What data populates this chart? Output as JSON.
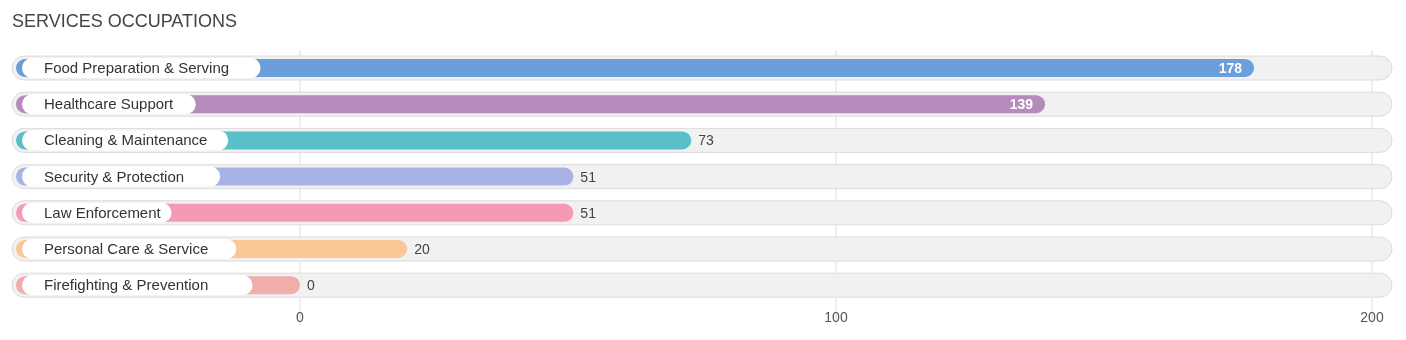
{
  "chart_data": {
    "type": "bar",
    "orientation": "horizontal",
    "title": "SERVICES OCCUPATIONS",
    "categories": [
      "Food Preparation & Serving",
      "Healthcare Support",
      "Cleaning & Maintenance",
      "Security & Protection",
      "Law Enforcement",
      "Personal Care & Service",
      "Firefighting & Prevention"
    ],
    "values": [
      178,
      139,
      73,
      51,
      51,
      20,
      0
    ],
    "colors": [
      "#6a9fdc",
      "#b48bbb",
      "#5bbfca",
      "#a9b2e4",
      "#f599b4",
      "#f9c896",
      "#f0aeab"
    ],
    "xlim": [
      0,
      200
    ],
    "xticks": [
      0,
      100,
      200
    ],
    "grid": "x",
    "data_labels": true
  }
}
